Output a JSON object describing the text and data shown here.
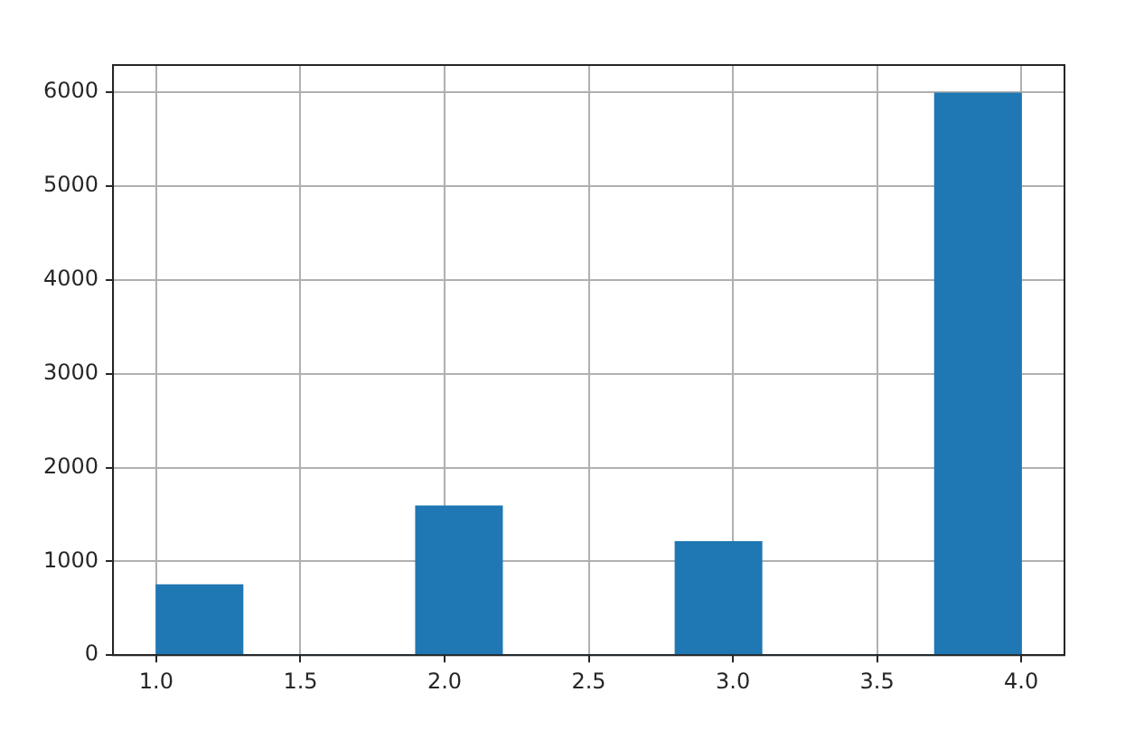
{
  "chart_data": {
    "type": "histogram",
    "bins": [
      1.0,
      1.3,
      1.6,
      1.9,
      2.2,
      2.5,
      2.8,
      3.1,
      3.4,
      3.7,
      4.0
    ],
    "values": [
      750,
      0,
      0,
      1590,
      0,
      0,
      1210,
      0,
      0,
      5990
    ],
    "color": "#1f77b4",
    "xlim": [
      0.85,
      4.15
    ],
    "xticks": [
      {
        "value": 1,
        "label": "1.0"
      },
      {
        "value": 1.5,
        "label": "1.5"
      },
      {
        "value": 2,
        "label": "2.0"
      },
      {
        "value": 2.5,
        "label": "2.5"
      },
      {
        "value": 3,
        "label": "3.0"
      },
      {
        "value": 3.5,
        "label": "3.5"
      },
      {
        "value": 4,
        "label": "4.0"
      }
    ],
    "ylim": [
      0,
      6290
    ],
    "yticks": [
      0,
      1000,
      2000,
      3000,
      4000,
      5000,
      6000
    ],
    "grid": true
  }
}
